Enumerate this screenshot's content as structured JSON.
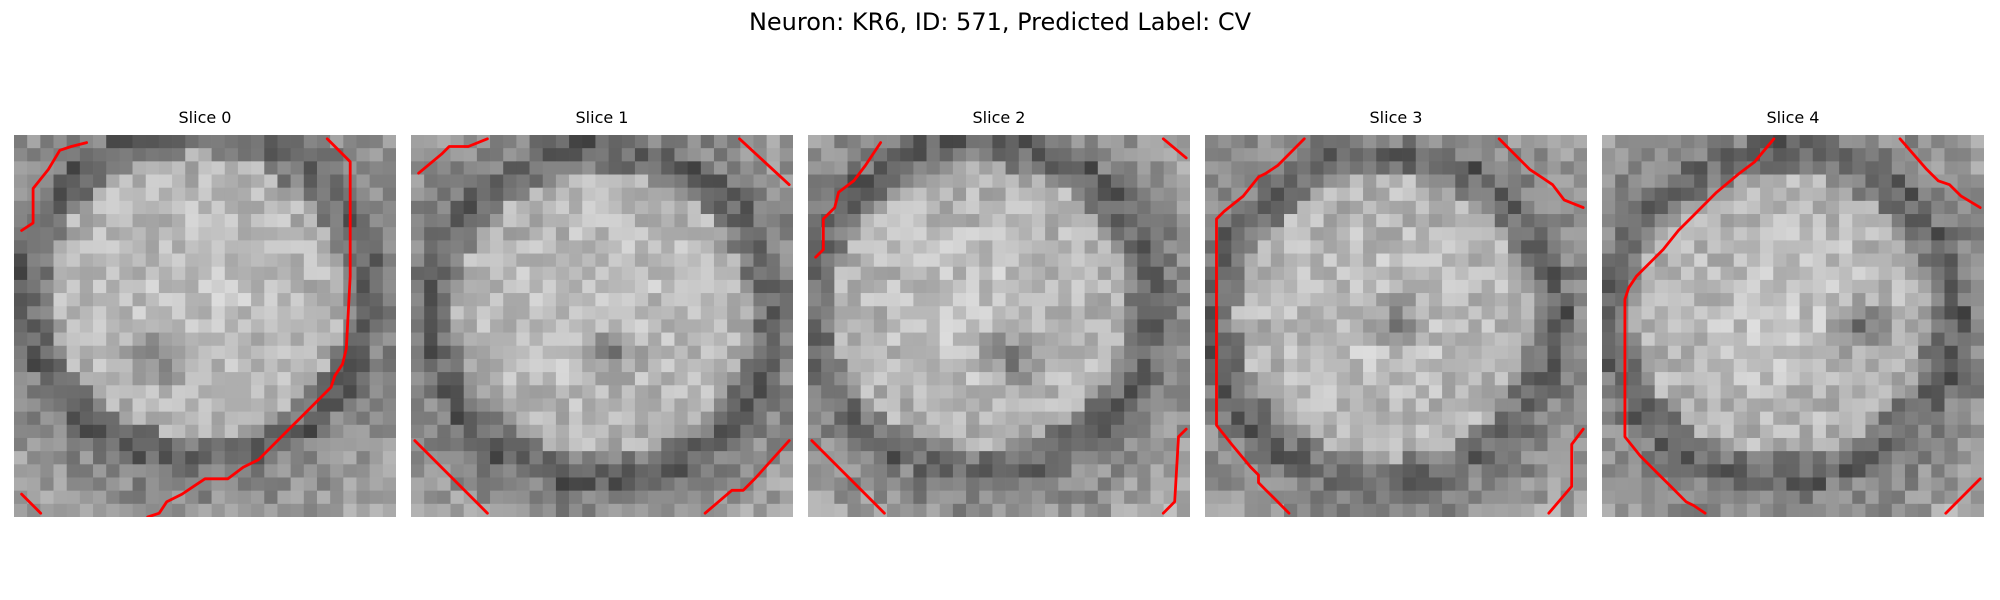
{
  "figure": {
    "title": "Neuron: KR6, ID: 571, Predicted Label: CV"
  },
  "panels": [
    {
      "title": "Slice 0",
      "image": {
        "description_name": "grayscale-microscopy-slice",
        "bright_center": [
          0.48,
          0.42
        ],
        "dark_spot": [
          0.38,
          0.58
        ]
      },
      "contours": [
        [
          [
            0.02,
            0.25
          ],
          [
            0.05,
            0.23
          ],
          [
            0.05,
            0.14
          ],
          [
            0.09,
            0.09
          ],
          [
            0.12,
            0.04
          ],
          [
            0.15,
            0.03
          ],
          [
            0.19,
            0.02
          ]
        ],
        [
          [
            0.82,
            0.01
          ],
          [
            0.88,
            0.07
          ],
          [
            0.88,
            0.37
          ],
          [
            0.87,
            0.56
          ],
          [
            0.86,
            0.6
          ],
          [
            0.84,
            0.63
          ],
          [
            0.83,
            0.66
          ],
          [
            0.8,
            0.69
          ],
          [
            0.78,
            0.71
          ],
          [
            0.75,
            0.74
          ],
          [
            0.73,
            0.76
          ],
          [
            0.7,
            0.79
          ],
          [
            0.67,
            0.82
          ],
          [
            0.64,
            0.85
          ],
          [
            0.6,
            0.87
          ],
          [
            0.56,
            0.9
          ],
          [
            0.5,
            0.9
          ],
          [
            0.47,
            0.92
          ],
          [
            0.44,
            0.94
          ],
          [
            0.4,
            0.96
          ],
          [
            0.38,
            0.99
          ],
          [
            0.35,
            1.0
          ]
        ],
        [
          [
            0.02,
            0.94
          ],
          [
            0.07,
            0.99
          ]
        ]
      ]
    },
    {
      "title": "Slice 1",
      "image": {
        "description_name": "grayscale-microscopy-slice",
        "bright_center": [
          0.5,
          0.47
        ],
        "dark_spot": [
          0.52,
          0.57
        ]
      },
      "contours": [
        [
          [
            0.02,
            0.1
          ],
          [
            0.08,
            0.05
          ],
          [
            0.1,
            0.03
          ],
          [
            0.15,
            0.03
          ],
          [
            0.2,
            0.01
          ]
        ],
        [
          [
            0.86,
            0.01
          ],
          [
            0.99,
            0.13
          ]
        ],
        [
          [
            0.01,
            0.8
          ],
          [
            0.2,
            0.99
          ]
        ],
        [
          [
            0.77,
            0.99
          ],
          [
            0.84,
            0.93
          ],
          [
            0.87,
            0.93
          ],
          [
            0.9,
            0.9
          ],
          [
            0.99,
            0.8
          ]
        ]
      ]
    },
    {
      "title": "Slice 2",
      "image": {
        "description_name": "grayscale-microscopy-slice",
        "bright_center": [
          0.45,
          0.45
        ],
        "dark_spot": [
          0.53,
          0.58
        ]
      },
      "contours": [
        [
          [
            0.02,
            0.32
          ],
          [
            0.04,
            0.3
          ],
          [
            0.04,
            0.22
          ],
          [
            0.07,
            0.19
          ],
          [
            0.08,
            0.15
          ],
          [
            0.12,
            0.12
          ],
          [
            0.15,
            0.08
          ],
          [
            0.19,
            0.02
          ]
        ],
        [
          [
            0.93,
            0.01
          ],
          [
            0.99,
            0.06
          ]
        ],
        [
          [
            0.01,
            0.8
          ],
          [
            0.2,
            0.99
          ]
        ],
        [
          [
            0.93,
            0.99
          ],
          [
            0.96,
            0.96
          ],
          [
            0.97,
            0.79
          ],
          [
            0.99,
            0.77
          ]
        ]
      ]
    },
    {
      "title": "Slice 3",
      "image": {
        "description_name": "grayscale-microscopy-slice",
        "bright_center": [
          0.47,
          0.48
        ],
        "dark_spot": [
          0.5,
          0.49
        ]
      },
      "contours": [
        [
          [
            0.26,
            0.01
          ],
          [
            0.19,
            0.08
          ],
          [
            0.16,
            0.1
          ],
          [
            0.14,
            0.11
          ],
          [
            0.1,
            0.16
          ],
          [
            0.05,
            0.2
          ],
          [
            0.03,
            0.22
          ],
          [
            0.03,
            0.76
          ],
          [
            0.07,
            0.81
          ],
          [
            0.12,
            0.87
          ],
          [
            0.14,
            0.89
          ],
          [
            0.14,
            0.91
          ],
          [
            0.16,
            0.93
          ],
          [
            0.18,
            0.95
          ],
          [
            0.22,
            0.99
          ]
        ],
        [
          [
            0.77,
            0.01
          ],
          [
            0.85,
            0.09
          ],
          [
            0.88,
            0.11
          ],
          [
            0.91,
            0.13
          ],
          [
            0.94,
            0.17
          ],
          [
            0.99,
            0.19
          ]
        ],
        [
          [
            0.9,
            0.99
          ],
          [
            0.96,
            0.92
          ],
          [
            0.96,
            0.81
          ],
          [
            0.99,
            0.77
          ]
        ]
      ]
    },
    {
      "title": "Slice 4",
      "image": {
        "description_name": "grayscale-microscopy-slice",
        "bright_center": [
          0.47,
          0.47
        ],
        "dark_spot": [
          0.68,
          0.5
        ]
      },
      "contours": [
        [
          [
            0.45,
            0.01
          ],
          [
            0.4,
            0.07
          ],
          [
            0.36,
            0.1
          ],
          [
            0.3,
            0.15
          ],
          [
            0.24,
            0.21
          ],
          [
            0.2,
            0.25
          ],
          [
            0.16,
            0.3
          ],
          [
            0.12,
            0.34
          ],
          [
            0.09,
            0.37
          ],
          [
            0.07,
            0.4
          ],
          [
            0.06,
            0.43
          ],
          [
            0.06,
            0.79
          ],
          [
            0.1,
            0.84
          ],
          [
            0.14,
            0.88
          ],
          [
            0.18,
            0.92
          ],
          [
            0.22,
            0.96
          ],
          [
            0.24,
            0.97
          ],
          [
            0.27,
            0.99
          ]
        ],
        [
          [
            0.78,
            0.01
          ],
          [
            0.85,
            0.09
          ],
          [
            0.88,
            0.12
          ],
          [
            0.91,
            0.13
          ],
          [
            0.94,
            0.16
          ],
          [
            0.99,
            0.19
          ]
        ],
        [
          [
            0.9,
            0.99
          ],
          [
            0.99,
            0.9
          ]
        ]
      ]
    }
  ],
  "colors": {
    "contour": "#ff0000",
    "background": "#ffffff"
  }
}
